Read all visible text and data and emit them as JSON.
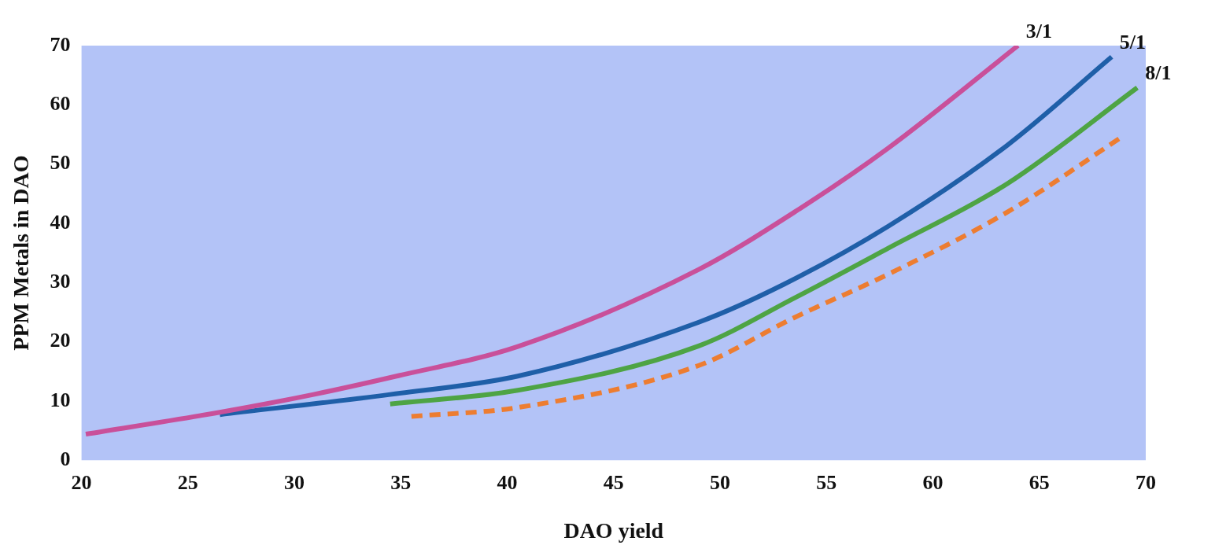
{
  "chart_data": {
    "type": "line",
    "xlabel": "DAO yield",
    "ylabel": "PPM Metals in DAO",
    "xlim": [
      20,
      70
    ],
    "ylim": [
      0,
      70
    ],
    "xticks": [
      20,
      25,
      30,
      35,
      40,
      45,
      50,
      55,
      60,
      65,
      70
    ],
    "yticks": [
      0,
      10,
      20,
      30,
      40,
      50,
      60,
      70
    ],
    "grid": false,
    "legend": false,
    "marker": "none",
    "line_style": "solid",
    "series": [
      {
        "name": "3/1",
        "color": "#c9509a",
        "x": [
          20.2,
          26.5,
          30.9,
          34.8,
          40.5,
          49,
          53.5,
          57.9,
          64
        ],
        "values": [
          4.4,
          8.1,
          11.1,
          14.2,
          19.2,
          32.2,
          41.9,
          52.7,
          70
        ]
      },
      {
        "name": "5/1",
        "color": "#1f5fa8",
        "x": [
          26.5,
          34.5,
          40.5,
          49,
          53,
          57.9,
          63.5,
          68.4
        ],
        "values": [
          7.7,
          11.1,
          14.2,
          23.3,
          29.7,
          39.5,
          53.2,
          68.1
        ]
      },
      {
        "name": "8/1",
        "color": "#4ea444",
        "x": [
          34.5,
          40.5,
          49,
          53.5,
          57.9,
          63.5,
          69.6
        ],
        "values": [
          9.5,
          11.8,
          19.3,
          27.4,
          35.8,
          46.7,
          62.9
        ]
      },
      {
        "color": "#ed7d31",
        "line_style": "dashed",
        "x": [
          35.5,
          40.5,
          49,
          53.5,
          57.9,
          63.5,
          68.8
        ],
        "values": [
          7.4,
          8.9,
          16,
          24.1,
          31.4,
          41.9,
          54.4
        ]
      }
    ]
  }
}
